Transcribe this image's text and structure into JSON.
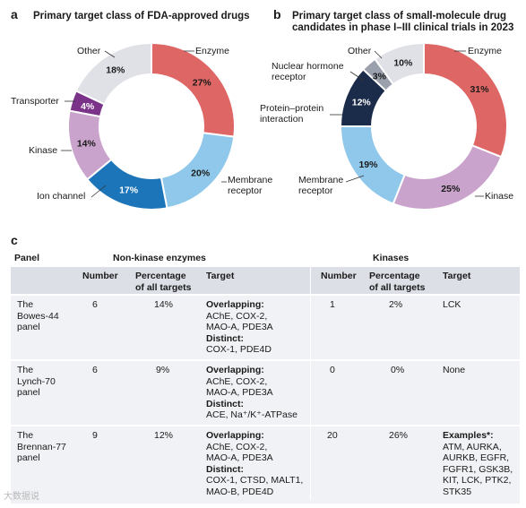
{
  "panels": {
    "a_letter": "a",
    "b_letter": "b",
    "c_letter": "c"
  },
  "chart_data": [
    {
      "type": "pie",
      "donut": true,
      "title": "Primary target class of FDA-approved drugs",
      "slices": [
        {
          "label": "Enzyme",
          "value": 27,
          "value_label": "27%",
          "color": "#de6664"
        },
        {
          "label": "Membrane\nreceptor",
          "value": 20,
          "value_label": "20%",
          "color": "#8fc8ea"
        },
        {
          "label": "Ion channel",
          "value": 17,
          "value_label": "17%",
          "color": "#1c75b9"
        },
        {
          "label": "Kinase",
          "value": 14,
          "value_label": "14%",
          "color": "#c9a3cc"
        },
        {
          "label": "Transporter",
          "value": 4,
          "value_label": "4%",
          "color": "#7a3389"
        },
        {
          "label": "Other",
          "value": 18,
          "value_label": "18%",
          "color": "#dfe1e7"
        }
      ]
    },
    {
      "type": "pie",
      "donut": true,
      "title": "Primary target class of small-molecule drug\ncandidates in phase I–III clinical trials in 2023",
      "slices": [
        {
          "label": "Enzyme",
          "value": 31,
          "value_label": "31%",
          "color": "#de6664"
        },
        {
          "label": "Kinase",
          "value": 25,
          "value_label": "25%",
          "color": "#c9a3cc"
        },
        {
          "label": "Membrane\nreceptor",
          "value": 19,
          "value_label": "19%",
          "color": "#8fc8ea"
        },
        {
          "label": "Protein–protein\ninteraction",
          "value": 12,
          "value_label": "12%",
          "color": "#1b2b4a"
        },
        {
          "label": "Nuclear hormone\nreceptor",
          "value": 3,
          "value_label": "3%",
          "color": "#9aa0ac"
        },
        {
          "label": "Other",
          "value": 10,
          "value_label": "10%",
          "color": "#dfe1e7"
        }
      ]
    }
  ],
  "table": {
    "col_panel": "Panel",
    "group_nonkinase": "Non-kinase enzymes",
    "group_kinases": "Kinases",
    "sub_number": "Number",
    "sub_percentage": "Percentage\nof all targets",
    "sub_target": "Target",
    "overlapping_label": "Overlapping:",
    "distinct_label": "Distinct:",
    "examples_label": "Examples*:",
    "rows": [
      {
        "panel": "The\nBowes-44\npanel",
        "nk_number": "6",
        "nk_pct": "14%",
        "nk_overlap": "AChE, COX-2,\nMAO-A, PDE3A",
        "nk_distinct": "COX-1, PDE4D",
        "k_number": "1",
        "k_pct": "2%",
        "k_target": "LCK"
      },
      {
        "panel": "The\nLynch-70\npanel",
        "nk_number": "6",
        "nk_pct": "9%",
        "nk_overlap": "AChE, COX-2,\nMAO-A, PDE3A",
        "nk_distinct": "ACE, Na⁺/K⁺-ATPase",
        "k_number": "0",
        "k_pct": "0%",
        "k_target": "None"
      },
      {
        "panel": "The\nBrennan-77\npanel",
        "nk_number": "9",
        "nk_pct": "12%",
        "nk_overlap": "AChE, COX-2,\nMAO-A, PDE3A",
        "nk_distinct": "COX-1, CTSD, MALT1,\nMAO-B, PDE4D",
        "k_number": "20",
        "k_pct": "26%",
        "k_examples": "ATM, AURKA,\nAURKB, EGFR,\nFGFR1, GSK3B,\nKIT, LCK, PTK2,\nSTK35"
      }
    ]
  },
  "watermark": "大数据说"
}
